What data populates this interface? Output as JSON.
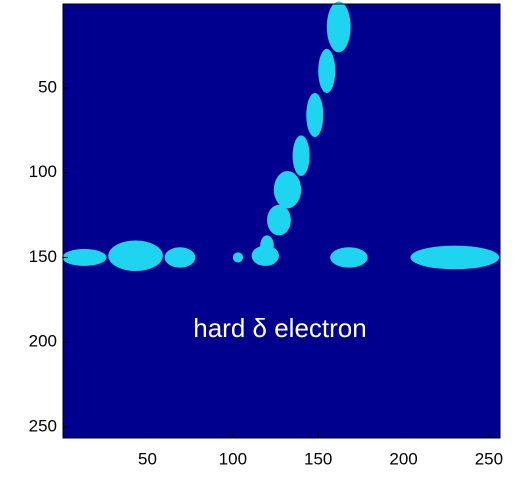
{
  "chart_data": {
    "type": "image",
    "annotation": "hard δ electron",
    "background_color": "#00008f",
    "color": "#1fd4ee",
    "xlim": [
      0.5,
      256.5
    ],
    "ylim": [
      0.5,
      256.5
    ],
    "y_reversed": true,
    "xticks": [
      50,
      100,
      150,
      200,
      250
    ],
    "yticks": [
      50,
      100,
      150,
      200,
      250
    ],
    "clusters": {
      "x": [
        13,
        43,
        69,
        103,
        119,
        168,
        230,
        120,
        127,
        132,
        140,
        148,
        155,
        162
      ],
      "y": [
        150,
        149,
        150,
        150,
        149,
        150,
        150,
        143,
        128,
        110,
        90,
        66,
        40,
        14
      ],
      "rx": [
        13,
        16,
        9,
        3,
        8,
        11,
        26,
        4,
        7,
        8,
        5,
        5,
        5,
        7
      ],
      "ry": [
        5,
        9,
        6,
        3,
        6,
        6,
        7,
        6,
        9,
        11,
        12,
        13,
        13,
        15
      ]
    }
  }
}
